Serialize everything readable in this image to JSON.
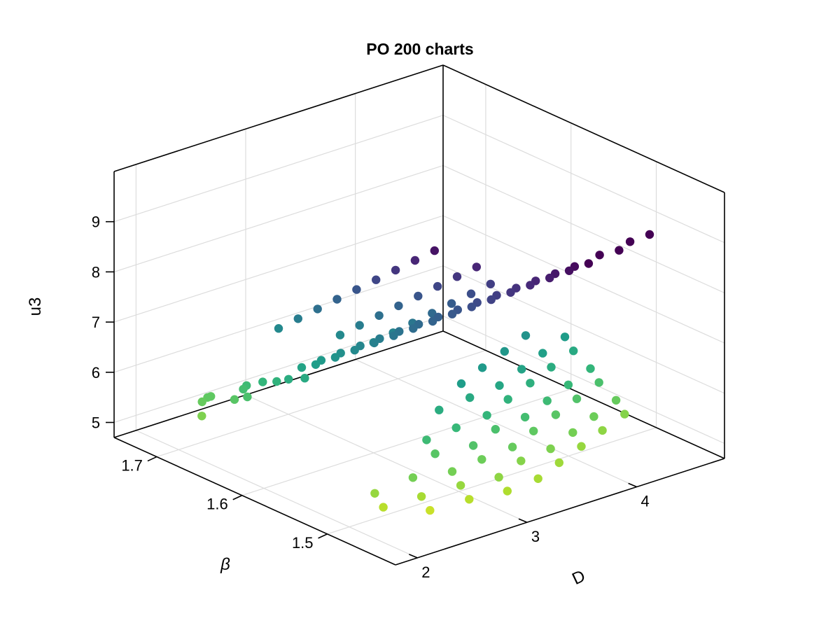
{
  "chart_data": {
    "type": "scatter",
    "title": "PO 200 charts",
    "xlabel": "D",
    "ylabel": "β",
    "zlabel": "u3",
    "x_range": [
      1.8,
      4.8
    ],
    "y_range": [
      1.42,
      1.75
    ],
    "z_range": [
      4.7,
      10.0
    ],
    "x_ticks": [
      "2",
      "3",
      "4"
    ],
    "y_ticks": [
      "1.5",
      "1.6",
      "1.7"
    ],
    "z_ticks": [
      "5",
      "6",
      "7",
      "8",
      "9"
    ],
    "grid": true,
    "colormap": "viridis",
    "color_by": "z",
    "color_range": [
      5.0,
      8.8
    ],
    "points": [
      [
        2.0,
        1.46,
        5.4
      ],
      [
        2.0,
        1.47,
        5.6
      ],
      [
        2.27,
        1.44,
        5.3
      ],
      [
        2.27,
        1.45,
        5.5
      ],
      [
        2.27,
        1.46,
        5.8
      ],
      [
        2.55,
        1.43,
        5.4
      ],
      [
        2.55,
        1.44,
        5.6
      ],
      [
        2.55,
        1.45,
        5.8
      ],
      [
        2.55,
        1.47,
        6.0
      ],
      [
        2.55,
        1.48,
        6.2
      ],
      [
        2.82,
        1.42,
        5.45
      ],
      [
        2.82,
        1.43,
        5.65
      ],
      [
        2.82,
        1.45,
        5.85
      ],
      [
        2.82,
        1.46,
        6.05
      ],
      [
        2.82,
        1.48,
        6.25
      ],
      [
        2.82,
        1.5,
        6.45
      ],
      [
        3.1,
        1.42,
        5.5
      ],
      [
        3.1,
        1.44,
        5.7
      ],
      [
        3.1,
        1.45,
        5.9
      ],
      [
        3.1,
        1.47,
        6.1
      ],
      [
        3.1,
        1.48,
        6.3
      ],
      [
        3.1,
        1.5,
        6.5
      ],
      [
        3.1,
        1.51,
        6.7
      ],
      [
        3.37,
        1.43,
        5.55
      ],
      [
        3.37,
        1.44,
        5.75
      ],
      [
        3.37,
        1.46,
        5.95
      ],
      [
        3.37,
        1.47,
        6.15
      ],
      [
        3.37,
        1.49,
        6.35
      ],
      [
        3.37,
        1.5,
        6.55
      ],
      [
        3.37,
        1.52,
        6.75
      ],
      [
        3.65,
        1.44,
        5.6
      ],
      [
        3.65,
        1.45,
        5.8
      ],
      [
        3.65,
        1.47,
        6.0
      ],
      [
        3.65,
        1.48,
        6.2
      ],
      [
        3.65,
        1.5,
        6.4
      ],
      [
        3.65,
        1.51,
        6.6
      ],
      [
        3.65,
        1.53,
        6.8
      ],
      [
        3.92,
        1.45,
        5.65
      ],
      [
        3.92,
        1.46,
        5.85
      ],
      [
        3.92,
        1.48,
        6.05
      ],
      [
        3.92,
        1.49,
        6.25
      ],
      [
        3.92,
        1.51,
        6.45
      ],
      [
        3.92,
        1.52,
        6.65
      ],
      [
        3.92,
        1.54,
        6.85
      ],
      [
        4.2,
        1.46,
        5.7
      ],
      [
        4.2,
        1.47,
        5.9
      ],
      [
        4.2,
        1.49,
        6.1
      ],
      [
        4.2,
        1.5,
        6.3
      ],
      [
        4.2,
        1.52,
        6.5
      ],
      [
        4.2,
        1.53,
        6.7
      ],
      [
        1.9,
        1.66,
        5.75
      ],
      [
        1.98,
        1.67,
        5.9
      ],
      [
        2.03,
        1.67,
        5.95
      ],
      [
        2.06,
        1.67,
        5.95
      ],
      [
        2.12,
        1.65,
        6.0
      ],
      [
        2.16,
        1.64,
        6.1
      ],
      [
        2.2,
        1.65,
        6.15
      ],
      [
        2.23,
        1.65,
        6.2
      ],
      [
        2.3,
        1.64,
        6.3
      ],
      [
        2.35,
        1.63,
        6.35
      ],
      [
        2.38,
        1.62,
        6.45
      ],
      [
        2.45,
        1.61,
        6.5
      ],
      [
        2.5,
        1.62,
        6.6
      ],
      [
        2.55,
        1.61,
        6.7
      ],
      [
        2.6,
        1.61,
        6.75
      ],
      [
        2.65,
        1.6,
        6.85
      ],
      [
        2.7,
        1.6,
        6.9
      ],
      [
        2.75,
        1.59,
        7.0
      ],
      [
        2.8,
        1.59,
        7.05
      ],
      [
        2.85,
        1.58,
        7.15
      ],
      [
        2.9,
        1.58,
        7.2
      ],
      [
        2.95,
        1.57,
        7.3
      ],
      [
        3.0,
        1.57,
        7.35
      ],
      [
        3.05,
        1.56,
        7.45
      ],
      [
        3.1,
        1.56,
        7.5
      ],
      [
        3.15,
        1.55,
        7.6
      ],
      [
        3.2,
        1.55,
        7.65
      ],
      [
        3.25,
        1.54,
        7.75
      ],
      [
        3.3,
        1.54,
        7.8
      ],
      [
        3.35,
        1.53,
        7.9
      ],
      [
        3.4,
        1.53,
        7.95
      ],
      [
        3.45,
        1.52,
        8.05
      ],
      [
        3.5,
        1.52,
        8.1
      ],
      [
        3.55,
        1.51,
        8.2
      ],
      [
        3.6,
        1.51,
        8.25
      ],
      [
        3.65,
        1.5,
        8.35
      ],
      [
        3.7,
        1.5,
        8.4
      ],
      [
        3.75,
        1.49,
        8.5
      ],
      [
        3.8,
        1.49,
        8.55
      ],
      [
        3.85,
        1.48,
        8.65
      ],
      [
        3.9,
        1.48,
        8.7
      ],
      [
        3.95,
        1.47,
        8.8
      ],
      [
        4.05,
        1.47,
        8.9
      ],
      [
        4.15,
        1.46,
        9.0
      ],
      [
        4.25,
        1.46,
        9.1
      ],
      [
        4.35,
        1.45,
        9.25
      ],
      [
        2.6,
        1.66,
        7.0
      ],
      [
        2.7,
        1.65,
        7.2
      ],
      [
        2.8,
        1.64,
        7.4
      ],
      [
        2.9,
        1.63,
        7.6
      ],
      [
        3.0,
        1.62,
        7.8
      ],
      [
        3.1,
        1.61,
        8.0
      ],
      [
        3.2,
        1.6,
        8.2
      ],
      [
        3.3,
        1.59,
        8.4
      ],
      [
        3.4,
        1.58,
        8.6
      ],
      [
        2.85,
        1.62,
        7.0
      ],
      [
        2.95,
        1.61,
        7.2
      ],
      [
        3.05,
        1.6,
        7.4
      ],
      [
        3.15,
        1.59,
        7.6
      ],
      [
        3.25,
        1.58,
        7.8
      ],
      [
        3.35,
        1.57,
        8.0
      ],
      [
        3.45,
        1.56,
        8.2
      ],
      [
        3.55,
        1.55,
        8.4
      ],
      [
        3.0,
        1.6,
        6.9
      ],
      [
        3.1,
        1.59,
        7.1
      ],
      [
        3.2,
        1.58,
        7.3
      ],
      [
        3.3,
        1.57,
        7.5
      ],
      [
        3.4,
        1.56,
        7.7
      ],
      [
        3.5,
        1.55,
        7.9
      ],
      [
        3.6,
        1.54,
        8.1
      ]
    ]
  }
}
